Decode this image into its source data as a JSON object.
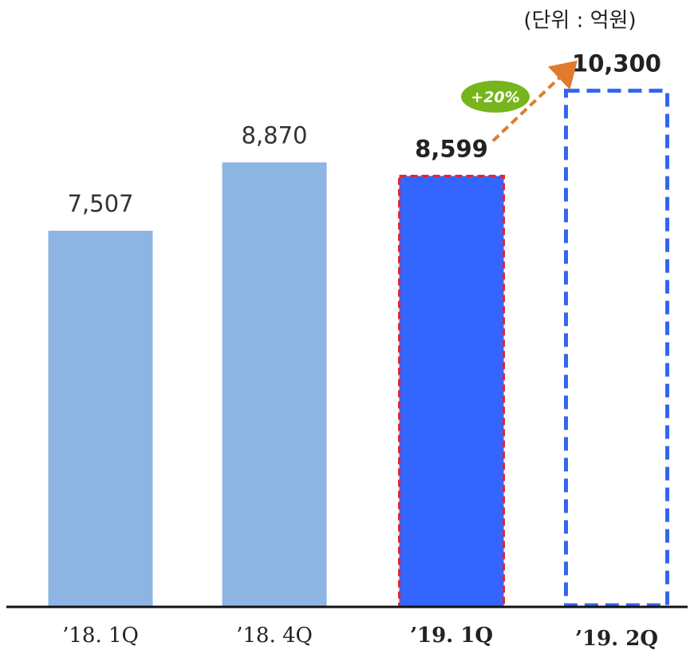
{
  "unit_label": "(단위 : 억원)",
  "growth_badge": "+20%",
  "colors": {
    "past_bar": "#8eb4e3",
    "current_bar": "#3366ff",
    "current_border": "#e8222a",
    "forecast_border": "#3366ee",
    "arrow": "#e07b2e",
    "badge": "#76b51b",
    "baseline": "#111111"
  },
  "chart_data": {
    "type": "bar",
    "categories": [
      "’18. 1Q",
      "’18. 4Q",
      "’19. 1Q",
      "’19. 2Q"
    ],
    "values": [
      7507,
      8870,
      8599,
      10300
    ],
    "value_labels": [
      "7,507",
      "8,870",
      "8,599",
      "10,300"
    ],
    "styles": [
      "past",
      "past",
      "current",
      "forecast"
    ],
    "ylim": [
      0,
      10900
    ],
    "grid": false,
    "legend": "none",
    "annotation": {
      "text": "+20%",
      "from_category": "’19. 1Q",
      "to_category": "’19. 2Q"
    }
  }
}
